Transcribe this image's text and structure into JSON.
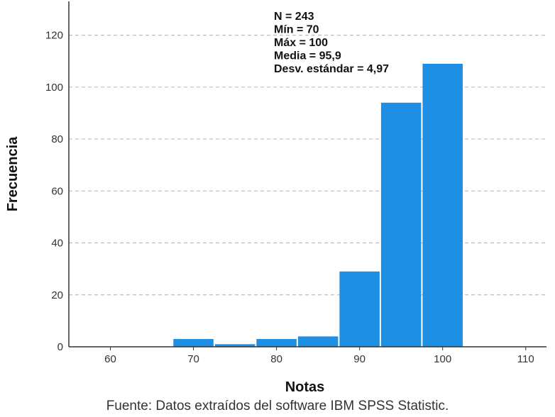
{
  "chart_data": {
    "type": "bar",
    "xlabel": "Notas",
    "ylabel": "Frecuencia",
    "xlim": [
      55,
      112.5
    ],
    "ylim": [
      0,
      133
    ],
    "x_ticks": [
      "60",
      "70",
      "80",
      "90",
      "100",
      "110"
    ],
    "y_ticks": [
      "0",
      "20",
      "40",
      "60",
      "80",
      "100",
      "120"
    ],
    "grid": "horizontal dashed",
    "bar_color": "#1f8fe5",
    "bins": [
      {
        "start": 67.5,
        "end": 72.5,
        "value": 3
      },
      {
        "start": 72.5,
        "end": 77.5,
        "value": 1
      },
      {
        "start": 77.5,
        "end": 82.5,
        "value": 3
      },
      {
        "start": 82.5,
        "end": 87.5,
        "value": 4
      },
      {
        "start": 87.5,
        "end": 92.5,
        "value": 29
      },
      {
        "start": 92.5,
        "end": 97.5,
        "value": 94
      },
      {
        "start": 97.5,
        "end": 102.5,
        "value": 109
      }
    ],
    "annotations": [
      "N = 243",
      "Mín = 70",
      "Máx = 100",
      "Media = 95,9",
      "Desv. estándar = 4,97"
    ]
  },
  "caption": "Fuente: Datos extraídos del software IBM SPSS Statistic."
}
